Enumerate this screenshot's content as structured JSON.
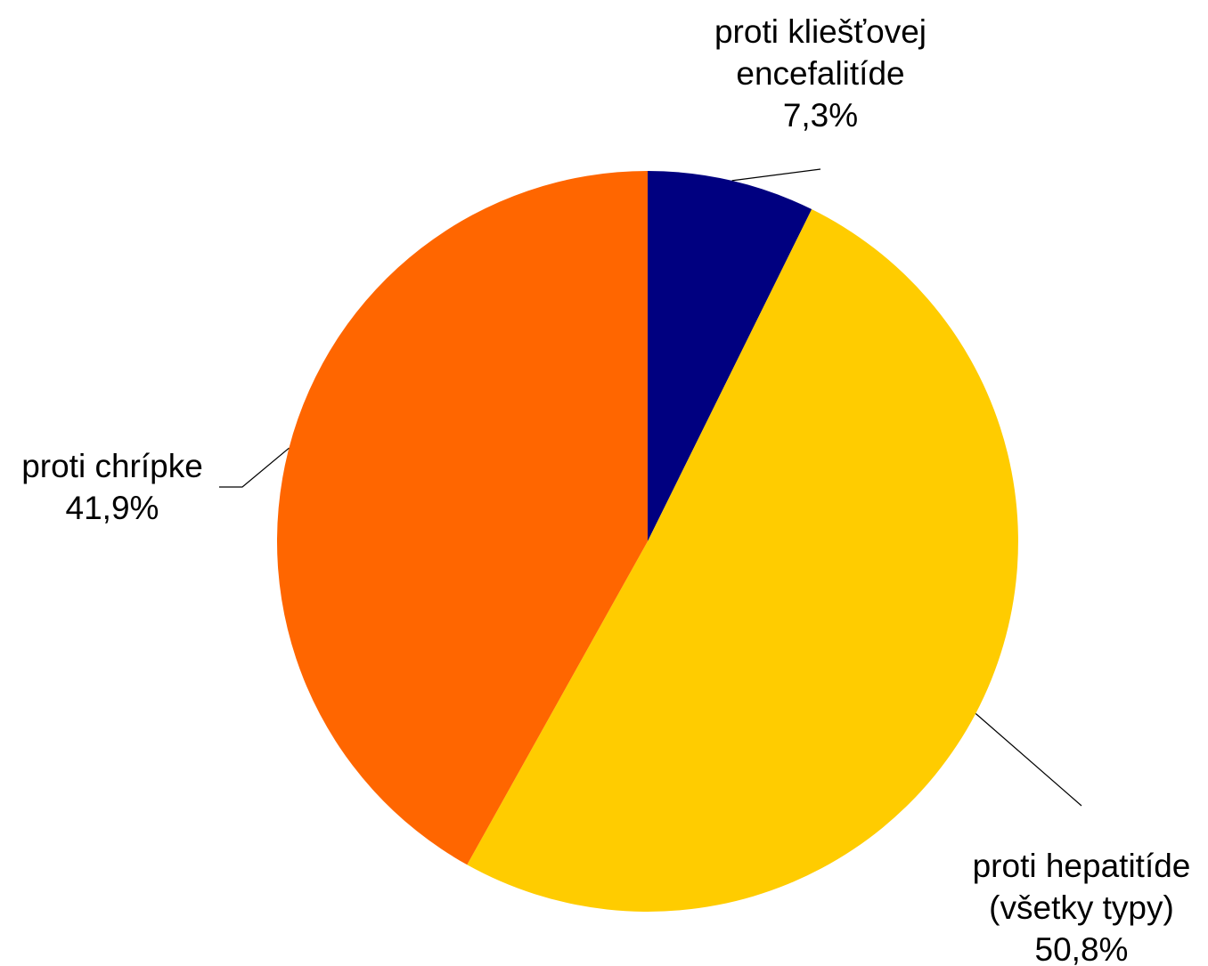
{
  "chart_data": {
    "type": "pie",
    "title": "",
    "start_angle_deg": 0,
    "direction": "clockwise",
    "slices": [
      {
        "label_lines": [
          "proti kliešťovej",
          "encefalitíde"
        ],
        "value": 7.3,
        "value_text": "7,3%",
        "color": "#000080",
        "label_side": "top-right"
      },
      {
        "label_lines": [
          "proti hepatitíde",
          "(všetky typy)"
        ],
        "value": 50.8,
        "value_text": "50,8%",
        "color": "#FFCC00",
        "label_side": "bottom-right"
      },
      {
        "label_lines": [
          "proti chrípke"
        ],
        "value": 41.9,
        "value_text": "41,9%",
        "color": "#FF6600",
        "label_side": "left"
      }
    ]
  }
}
